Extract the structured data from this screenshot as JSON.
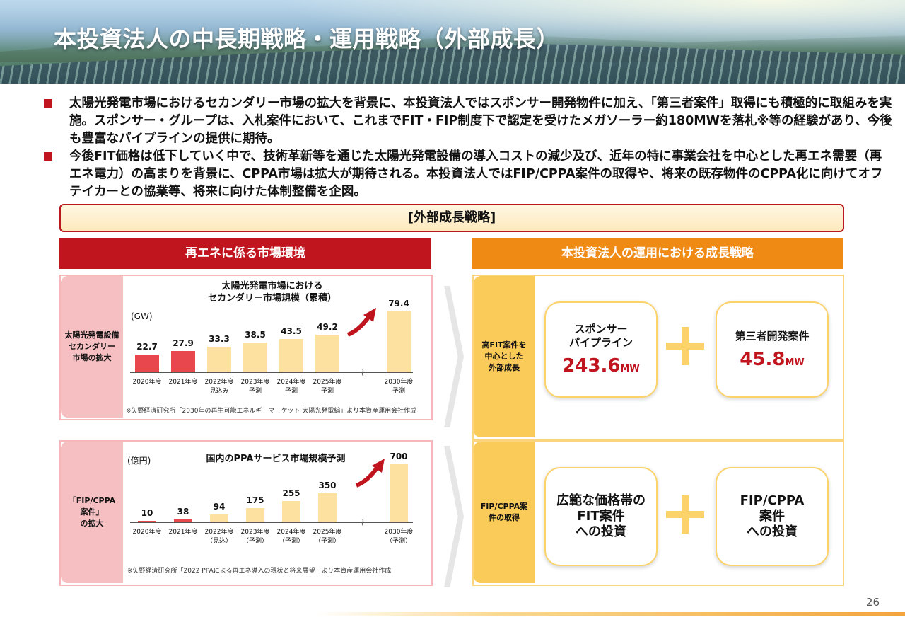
{
  "header": {
    "title": "本投資法人の中長期戦略・運用戦略（外部成長）"
  },
  "bullets": [
    "太陽光発電市場におけるセカンダリー市場の拡大を背景に、本投資法人ではスポンサー開発物件に加え、「第三者案件」取得にも積極的に取組みを実施。スポンサー・グループは、入札案件において、これまでFIT・FIP制度下で認定を受けたメガソーラー約180MWを落札※等の経験があり、今後も豊富なパイプラインの提供に期待。",
    "今後FIT価格は低下していく中で、技術革新等を通じた太陽光発電設備の導入コストの減少及び、近年の特に事業会社を中心とした再エネ需要（再エネ電力）の高まりを背景に、CPPA市場は拡大が期待される。本投資法人ではFIP/CPPA案件の取得や、将来の既存物件のCPPA化に向けてオフテイカーとの協業等、将来に向けた体制整備を企図。"
  ],
  "strategy_title": "[外部成長戦略]",
  "left_header": "再エネに係る市場環境",
  "right_header": "本投資法人の運用における成長戦略",
  "top_side_label": [
    "太陽光発電設備",
    "セカンダリー",
    "市場の拡大"
  ],
  "bottom_side_label": [
    "「FIP/CPPA",
    "案件」",
    "の拡大"
  ],
  "top_right_side_label": [
    "高FIT案件を",
    "中心とした",
    "外部成長"
  ],
  "bottom_right_side_label": [
    "FIP/CPPA案",
    "件の取得"
  ],
  "chart_data": [
    {
      "type": "bar",
      "title": "太陽光発電市場における\nセカンダリー市場規模（累積）",
      "ylabel": "(GW)",
      "categories": [
        "2020年度",
        "2021年度",
        "2022年度\n見込み",
        "2023年度\n予測",
        "2024年度\n予測",
        "2025年度\n予測",
        "2030年度\n予測"
      ],
      "values": [
        22.7,
        27.9,
        33.3,
        38.5,
        43.5,
        49.2,
        79.4
      ],
      "value_labels": [
        "22.7",
        "27.9",
        "33.3",
        "38.5",
        "43.5",
        "49.2",
        "79.4"
      ],
      "colors": [
        "#e8474e",
        "#e8474e",
        "#fde1a0",
        "#fde1a0",
        "#fde1a0",
        "#fde1a0",
        "#fde1a0"
      ],
      "ylim": [
        0,
        79.4
      ],
      "note": "※矢野経済研究所「2030年の再生可能エネルギーマーケット 太陽光発電編」より本資産運用会社作成"
    },
    {
      "type": "bar",
      "title": "国内のPPAサービス市場規模予測",
      "ylabel": "(億円)",
      "categories": [
        "2020年度",
        "2021年度",
        "2022年度\n（見込）",
        "2023年度\n（予測）",
        "2024年度\n（予測）",
        "2025年度\n（予測）",
        "2030年度\n（予測）"
      ],
      "values": [
        10,
        38,
        94,
        175,
        255,
        350,
        700
      ],
      "value_labels": [
        "10",
        "38",
        "94",
        "175",
        "255",
        "350",
        "700"
      ],
      "colors": [
        "#e8474e",
        "#e8474e",
        "#fde1a0",
        "#fde1a0",
        "#fde1a0",
        "#fde1a0",
        "#fde1a0"
      ],
      "ylim": [
        0,
        700
      ],
      "note": "※矢野経済研究所「2022 PPAによる再エネ導入の現状と将来展望」より本資産運用会社作成"
    }
  ],
  "cards": {
    "sponsor": {
      "title": [
        "スポンサー",
        "パイプライン"
      ],
      "value": "243.6",
      "unit": "MW"
    },
    "third_party": {
      "title": "第三者開発案件",
      "value": "45.8",
      "unit": "MW"
    },
    "fit": [
      "広範な価格帯の",
      "FIT案件",
      "への投資"
    ],
    "fip": [
      "FIP/CPPA",
      "案件",
      "への投資"
    ]
  },
  "page_number": "26"
}
